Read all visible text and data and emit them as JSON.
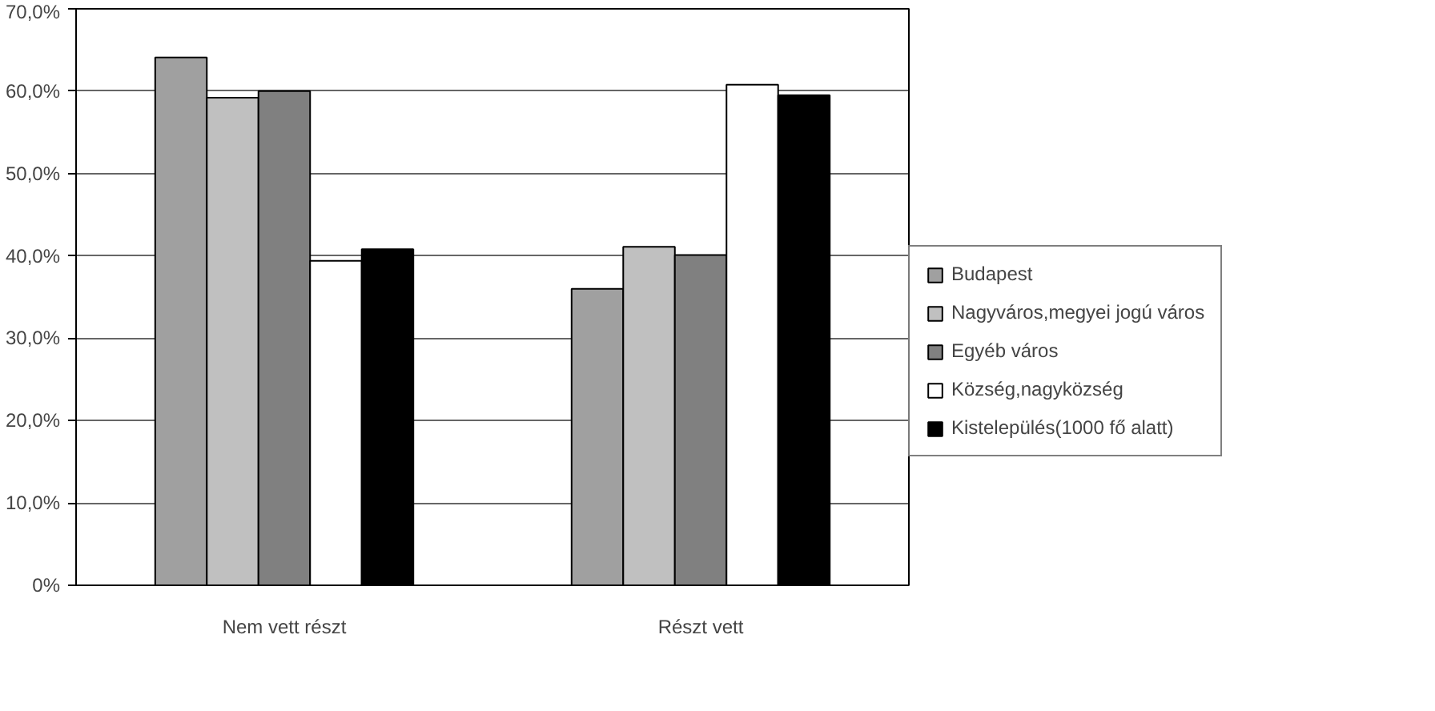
{
  "chart_data": {
    "type": "bar",
    "categories": [
      "Nem vett részt",
      "Részt vett"
    ],
    "series": [
      {
        "name": "Budapest",
        "color": "#a0a0a0",
        "values": [
          64.1,
          36.0
        ]
      },
      {
        "name": "Nagyváros,megyei jogú város",
        "color": "#c0c0c0",
        "values": [
          59.2,
          41.1
        ]
      },
      {
        "name": "Egyéb város",
        "color": "#808080",
        "values": [
          60.0,
          40.1
        ]
      },
      {
        "name": "Község,nagyközség",
        "color": "#ffffff",
        "values": [
          39.4,
          60.8
        ]
      },
      {
        "name": "Kistelepülés(1000 fő alatt)",
        "color": "#000000",
        "values": [
          40.8,
          59.5
        ]
      }
    ],
    "ylim": [
      0,
      70
    ],
    "yticks": [
      {
        "value": 0,
        "label": "0%"
      },
      {
        "value": 10,
        "label": "10,0%"
      },
      {
        "value": 20,
        "label": "20,0%"
      },
      {
        "value": 30,
        "label": "30,0%"
      },
      {
        "value": 40,
        "label": "40,0%"
      },
      {
        "value": 50,
        "label": "50,0%"
      },
      {
        "value": 60,
        "label": "60,0%"
      },
      {
        "value": 70,
        "label": "70,0%"
      }
    ],
    "grid": "y",
    "legend": "right"
  }
}
